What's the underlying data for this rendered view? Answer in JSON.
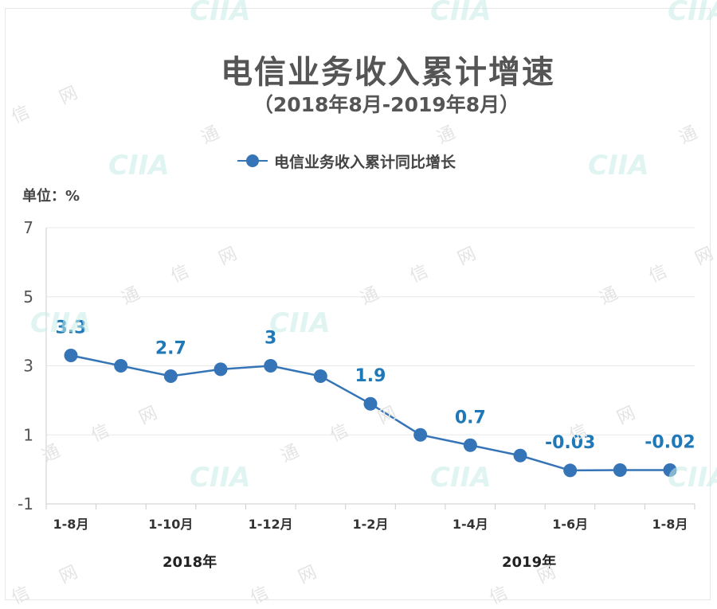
{
  "title": "电信业务收入累计增速",
  "subtitle": "（2018年8月-2019年8月）",
  "unit_label": "单位：%",
  "year_labels": [
    "2018年",
    "2019年"
  ],
  "watermark_text": "CIIA",
  "watermark_cjk": [
    "通",
    "信",
    "网"
  ],
  "colors": {
    "series": "#3574b6",
    "data_label": "#1f79b8",
    "grid": "#e8e8e8",
    "axis": "#cccccc"
  },
  "chart_data": {
    "type": "line",
    "title": "电信业务收入累计增速",
    "subtitle": "（2018年8月-2019年8月）",
    "ylabel": "单位：%",
    "ylim": [
      -1,
      7
    ],
    "yticks": [
      -1,
      1,
      3,
      5,
      7
    ],
    "grid": true,
    "legend": "top-center",
    "x_tick_labels": [
      "1-8月",
      "1-10月",
      "1-12月",
      "1-2月",
      "1-4月",
      "1-6月",
      "1-8月"
    ],
    "x_tick_indices": [
      0,
      2,
      4,
      6,
      8,
      10,
      12
    ],
    "series": [
      {
        "name": "电信业务收入累计同比增长",
        "values": [
          3.3,
          3.0,
          2.7,
          2.9,
          3.0,
          2.7,
          1.9,
          1.0,
          0.7,
          0.4,
          -0.03,
          -0.02,
          -0.02
        ],
        "data_labels": [
          {
            "index": 0,
            "text": "3.3"
          },
          {
            "index": 2,
            "text": "2.7"
          },
          {
            "index": 4,
            "text": "3"
          },
          {
            "index": 6,
            "text": "1.9"
          },
          {
            "index": 8,
            "text": "0.7"
          },
          {
            "index": 10,
            "text": "-0.03"
          },
          {
            "index": 12,
            "text": "-0.02"
          }
        ]
      }
    ]
  }
}
